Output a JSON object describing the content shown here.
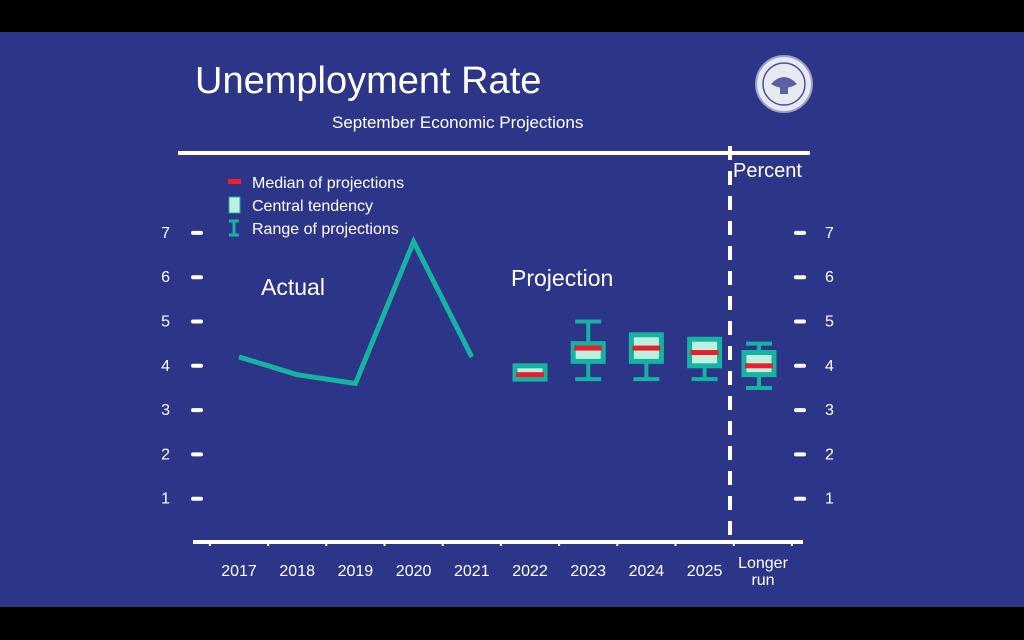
{
  "chart_data": {
    "type": "line",
    "title": "Unemployment Rate",
    "subtitle": "September Economic Projections",
    "unit_label": "Percent",
    "ylim": [
      0,
      8
    ],
    "y_ticks": [
      1,
      2,
      3,
      4,
      5,
      6,
      7
    ],
    "categories": [
      "2017",
      "2018",
      "2019",
      "2020",
      "2021",
      "2022",
      "2023",
      "2024",
      "2025",
      "Longer run"
    ],
    "actual": {
      "label": "Actual",
      "x": [
        "2017",
        "2018",
        "2019",
        "2020",
        "2021"
      ],
      "values": [
        4.2,
        3.8,
        3.6,
        6.8,
        4.2
      ]
    },
    "projection": {
      "label": "Projection",
      "items": [
        {
          "category": "2022",
          "range": [
            3.7,
            4.0
          ],
          "central": [
            3.7,
            4.0
          ],
          "median": 3.8
        },
        {
          "category": "2023",
          "range": [
            3.7,
            5.0
          ],
          "central": [
            4.1,
            4.5
          ],
          "median": 4.4
        },
        {
          "category": "2024",
          "range": [
            3.7,
            4.7
          ],
          "central": [
            4.1,
            4.7
          ],
          "median": 4.4
        },
        {
          "category": "2025",
          "range": [
            3.7,
            4.6
          ],
          "central": [
            4.0,
            4.6
          ],
          "median": 4.3
        },
        {
          "category": "Longer run",
          "range": [
            3.5,
            4.5
          ],
          "central": [
            3.8,
            4.3
          ],
          "median": 4.0
        }
      ]
    },
    "legend": {
      "placement": "top-left",
      "entries": [
        "Median of projections",
        "Central tendency",
        "Range of projections"
      ]
    },
    "colors": {
      "background": "#2c3588",
      "line": "#16b3a3",
      "median": "#e8202a",
      "central_fill": "#bff0df",
      "central_border": "#16b3a3",
      "axis": "#ffffff"
    },
    "seal_icon": "federal-reserve-seal-icon"
  }
}
